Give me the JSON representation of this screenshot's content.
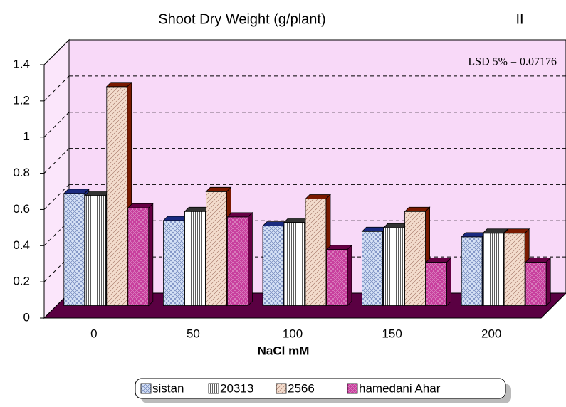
{
  "chart_data": {
    "type": "bar3d",
    "title": "Shoot Dry Weight (g/plant)",
    "annotations": [
      "II",
      "LSD 5% = 0.07176"
    ],
    "x_label": "NaCl mM",
    "categories": [
      "0",
      "50",
      "100",
      "150",
      "200"
    ],
    "series": [
      {
        "name": "sistan",
        "color": "#d6e2f6",
        "edge": "#1a2a80",
        "values": [
          0.62,
          0.47,
          0.44,
          0.41,
          0.38
        ]
      },
      {
        "name": "20313",
        "color": "#ffffff",
        "edge": "#333333",
        "values": [
          0.61,
          0.52,
          0.46,
          0.43,
          0.4
        ]
      },
      {
        "name": "2566",
        "color": "#f3dccd",
        "edge": "#7a1a00",
        "values": [
          1.21,
          0.63,
          0.59,
          0.52,
          0.4
        ]
      },
      {
        "name": "hamedani Ahar",
        "color": "#c8409e",
        "edge": "#660044",
        "values": [
          0.54,
          0.49,
          0.31,
          0.24,
          0.24
        ]
      }
    ],
    "ylim": [
      0,
      1.4
    ],
    "yticks": [
      0,
      0.2,
      0.4,
      0.6,
      0.8,
      1,
      1.2,
      1.4
    ],
    "grid": true
  }
}
